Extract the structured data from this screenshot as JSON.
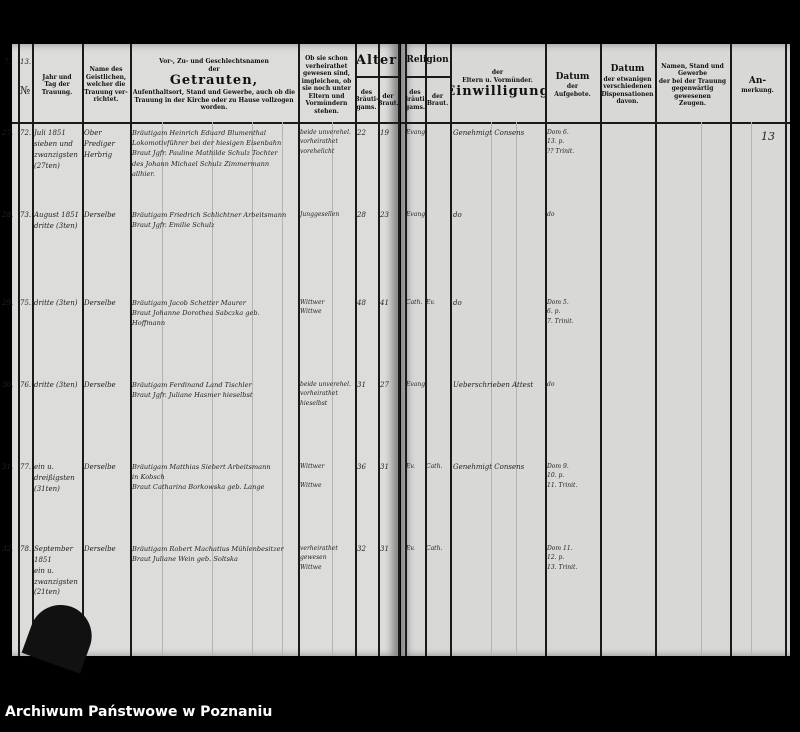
{
  "left_page": {
    "corner_marks": [
      "7.",
      "13.",
      "№",
      "№"
    ],
    "headers": [
      {
        "lines": [
          "Jahr und",
          "Tag der",
          "Trauung."
        ]
      },
      {
        "lines": [
          "Name des",
          "Geistlichen,",
          "welcher die",
          "Trauung ver-",
          "richtet."
        ]
      },
      {
        "lines": [
          "Vor-, Zu- und Geschlechtsnamen",
          "der"
        ],
        "big": "Getrauten,",
        "tail": "Aufenthaltsort, Stand und Gewerbe, auch ob die Trauung in der Kirche oder zu Hause vollzogen worden."
      },
      {
        "lines": [
          "Ob sie schon verheirathet gewesen sind, imgleichen, ob sie noch unter Eltern und Vormündern stehen."
        ]
      },
      {
        "big": "Alter",
        "lines": []
      },
      {
        "lines": [
          "des",
          "Bräuti-",
          "gams."
        ]
      },
      {
        "lines": [
          "der",
          "Braut."
        ]
      }
    ]
  },
  "right_page": {
    "page_number": "13",
    "headers": [
      {
        "mid": "Religion",
        "lines": []
      },
      {
        "lines": [
          "des",
          "Bräuti-",
          "gams."
        ]
      },
      {
        "lines": [
          "der",
          "Braut."
        ]
      },
      {
        "big": "Einwilligung",
        "lines": [
          "der",
          "Eltern u. Vormünder."
        ]
      },
      {
        "mid": "Datum",
        "lines": [
          "der",
          "Aufgebote."
        ]
      },
      {
        "mid": "Datum",
        "lines": [
          "der etwanigen",
          "verschiedenen",
          "Dispensationen",
          "davon."
        ]
      },
      {
        "lines": [
          "Namen, Stand und",
          "Gewerbe",
          "der bei der Trauung",
          "gegenwärtig gewesenen",
          "Zeugen."
        ]
      },
      {
        "mid": "An-",
        "lines": [
          "merkung."
        ]
      }
    ]
  },
  "entries": [
    {
      "margin": "27.",
      "no": "72.",
      "date": "Juli 1851\nsieben und\nzwanzigsten\n(27ten)",
      "clergy": "Ober Prediger\nHerbrig",
      "names": "Bräutigam Heinrich Eduard Blumenthal\nLokomotivführer bei der hiesigen Eisenbahn\nBraut Jgfr. Pauline Mathilde Schulz Tochter\ndes Johann Michael Schulz Zimmermann\nallhier.",
      "status": "beide unverehel.\nvorheirathet\nvorehelicht",
      "age_groom": "22",
      "age_bride": "19",
      "rel_groom": "Evangl.",
      "rel_bride": "",
      "consent": "Genehmigt Consens",
      "banns": "Dom 6.\n13. p.\n?? Trinit.",
      "dispensation": "",
      "witnesses": "",
      "remark": "13"
    },
    {
      "margin": "28.",
      "no": "73.",
      "date": "August 1851\ndritte (3ten)",
      "clergy": "Derselbe",
      "names": "Bräutigam Friedrich Schlichtner Arbeitsmann\nBraut Jgfr. Emilie Schulz",
      "status": "Junggesellen",
      "age_groom": "28",
      "age_bride": "23",
      "rel_groom": "Evangl.",
      "rel_bride": "",
      "consent": "do",
      "banns": "do",
      "dispensation": "",
      "witnesses": "",
      "remark": ""
    },
    {
      "margin": "29.",
      "no": "75.",
      "date": "dritte (3ten)",
      "clergy": "Derselbe",
      "names": "Bräutigam Jacob Schetter Maurer\nBraut Johanne Dorothea Sabczka geb.\nHoffmann",
      "status": "Wittwer\nWittwe",
      "age_groom": "48",
      "age_bride": "41",
      "rel_groom": "Cath.",
      "rel_bride": "Ev.",
      "consent": "do",
      "banns": "Dom 5.\n6. p.\n7. Trinit.",
      "dispensation": "",
      "witnesses": "",
      "remark": ""
    },
    {
      "margin": "30.",
      "no": "76.",
      "date": "dritte (3ten)",
      "clergy": "Derselbe",
      "names": "Bräutigam Ferdinand Land Tischler\nBraut Jgfr. Juliane Hasmer hieselbst",
      "status": "beide unverehel.\nvorheirathet\nhieselbst",
      "age_groom": "31",
      "age_bride": "27",
      "rel_groom": "Evangl.",
      "rel_bride": "",
      "consent": "Ueberschrieben Attest",
      "banns": "do",
      "dispensation": "",
      "witnesses": "",
      "remark": ""
    },
    {
      "margin": "31.",
      "no": "77.",
      "date": "ein u. dreißigsten\n(31ten)",
      "clergy": "Derselbe",
      "names": "Bräutigam Matthias Siebert Arbeitsmann\nin Kobsch\nBraut Catharina Borkowska geb. Lange",
      "status": "Wittwer\n\nWittwe",
      "age_groom": "36",
      "age_bride": "31",
      "rel_groom": "Ev.",
      "rel_bride": "Cath.",
      "consent": "Genehmigt Consens",
      "banns": "Dom 9.\n10. p.\n11. Trinit.",
      "dispensation": "",
      "witnesses": "",
      "remark": ""
    },
    {
      "margin": "32.",
      "no": "78.",
      "date": "September\n1851\nein u. zwanzigsten\n(21ten)",
      "clergy": "Derselbe",
      "names": "Bräutigam Robert Machatius Mühlenbesitzer\nBraut Juliane Wein geb. Soltska",
      "status": "verheirathet gewesen\nWittwe",
      "age_groom": "32",
      "age_bride": "31",
      "rel_groom": "Ev.",
      "rel_bride": "Cath.",
      "consent": "",
      "banns": "Dom 11.\n12. p.\n13. Trinit.",
      "dispensation": "",
      "witnesses": "",
      "remark": ""
    }
  ],
  "footer": {
    "archive": "Archiwum Państwowe w Poznaniu"
  }
}
